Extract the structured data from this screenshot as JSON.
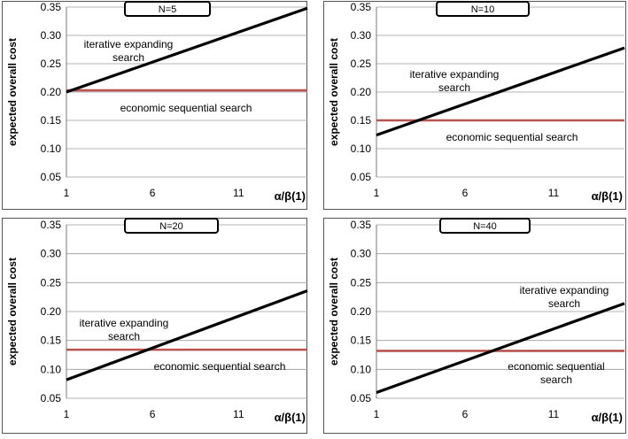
{
  "chart_data": [
    {
      "type": "line",
      "title": "N=5",
      "ylabel": "expected overall cost",
      "xlabel": "α/β(1)",
      "xlim": [
        1,
        15
      ],
      "ylim": [
        0.05,
        0.35
      ],
      "xticks": [
        "1",
        "6",
        "11"
      ],
      "yticks": [
        "0.05",
        "0.10",
        "0.15",
        "0.20",
        "0.25",
        "0.30",
        "0.35"
      ],
      "grid": "horizontal",
      "series": [
        {
          "name": "iterative expanding search",
          "label_lines": [
            "iterative expanding",
            "search"
          ],
          "color": "#000000",
          "x": [
            1,
            15
          ],
          "y": [
            0.2,
            0.348
          ]
        },
        {
          "name": "economic sequential search",
          "label_lines": [
            "economic sequential search"
          ],
          "color": "#b85450",
          "x": [
            1,
            15
          ],
          "y": [
            0.203,
            0.203
          ]
        }
      ]
    },
    {
      "type": "line",
      "title": "N=10",
      "ylabel": "expected overall cost",
      "xlabel": "α/β(1)",
      "xlim": [
        1,
        15
      ],
      "ylim": [
        0.05,
        0.35
      ],
      "xticks": [
        "1",
        "6",
        "11"
      ],
      "yticks": [
        "0.05",
        "0.10",
        "0.15",
        "0.20",
        "0.25",
        "0.30",
        "0.35"
      ],
      "grid": "horizontal",
      "series": [
        {
          "name": "iterative expanding search",
          "label_lines": [
            "iterative expanding",
            "search"
          ],
          "color": "#000000",
          "x": [
            1,
            15
          ],
          "y": [
            0.124,
            0.278
          ]
        },
        {
          "name": "economic sequential search",
          "label_lines": [
            "economic sequential search"
          ],
          "color": "#b85450",
          "x": [
            1,
            15
          ],
          "y": [
            0.15,
            0.15
          ]
        }
      ]
    },
    {
      "type": "line",
      "title": "N=20",
      "ylabel": "expected overall cost",
      "xlabel": "α/β(1)",
      "xlim": [
        1,
        15
      ],
      "ylim": [
        0.05,
        0.35
      ],
      "xticks": [
        "1",
        "6",
        "11"
      ],
      "yticks": [
        "0.05",
        "0.10",
        "0.15",
        "0.20",
        "0.25",
        "0.30",
        "0.35"
      ],
      "grid": "horizontal",
      "series": [
        {
          "name": "iterative expanding search",
          "label_lines": [
            "iterative expanding",
            "search"
          ],
          "color": "#000000",
          "x": [
            1,
            15
          ],
          "y": [
            0.082,
            0.236
          ]
        },
        {
          "name": "economic sequential search",
          "label_lines": [
            "economic sequential search"
          ],
          "color": "#b85450",
          "x": [
            1,
            15
          ],
          "y": [
            0.134,
            0.134
          ]
        }
      ]
    },
    {
      "type": "line",
      "title": "N=40",
      "ylabel": "expected overall cost",
      "xlabel": "α/β(1)",
      "xlim": [
        1,
        15
      ],
      "ylim": [
        0.05,
        0.35
      ],
      "xticks": [
        "1",
        "6",
        "11"
      ],
      "yticks": [
        "0.05",
        "0.10",
        "0.15",
        "0.20",
        "0.25",
        "0.30",
        "0.35"
      ],
      "grid": "horizontal",
      "series": [
        {
          "name": "iterative expanding search",
          "label_lines": [
            "iterative expanding",
            "search"
          ],
          "color": "#000000",
          "x": [
            1,
            15
          ],
          "y": [
            0.06,
            0.214
          ]
        },
        {
          "name": "economic sequential search",
          "label_lines": [
            "economic sequential",
            "search"
          ],
          "color": "#b85450",
          "x": [
            1,
            15
          ],
          "y": [
            0.132,
            0.132
          ]
        }
      ]
    }
  ]
}
